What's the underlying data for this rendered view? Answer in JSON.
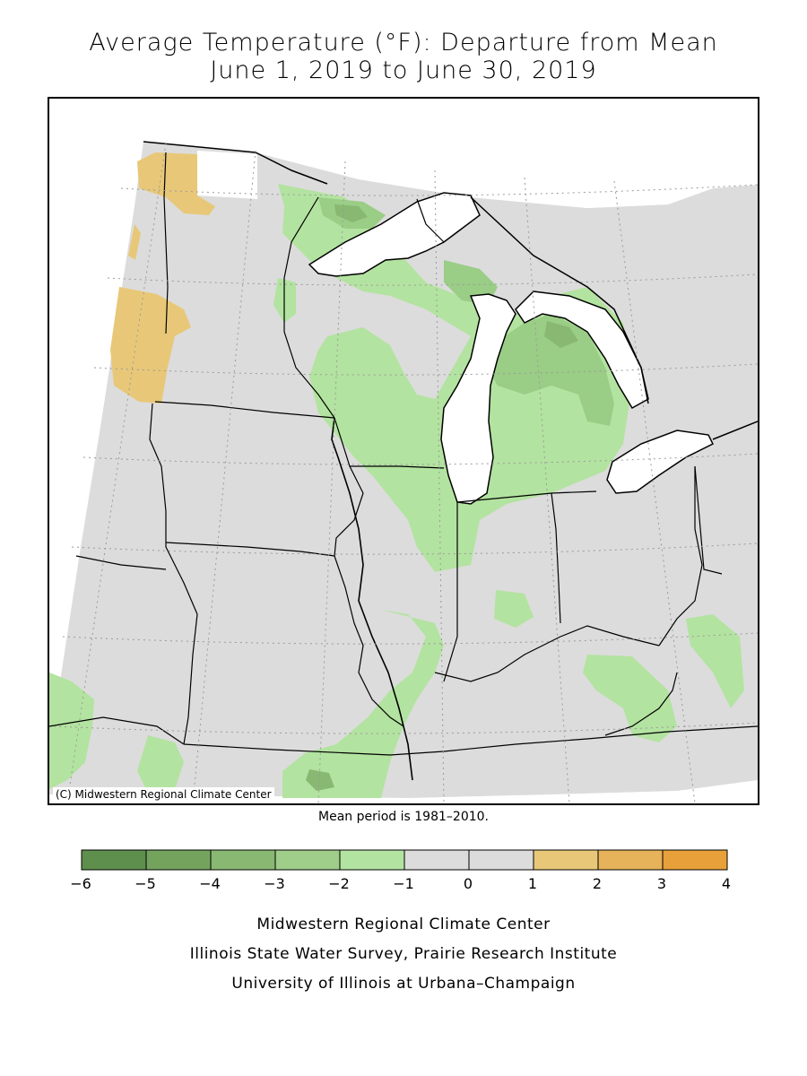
{
  "title": {
    "line1": "Average Temperature (°F): Departure from Mean",
    "line2": "June 1, 2019 to June 30, 2019"
  },
  "map": {
    "copyright": "(C) Midwestern Regional Climate Center",
    "colors": {
      "near_normal": "#dcdcdc",
      "minus1_to_minus2": "#b3e3a0",
      "minus2_to_minus3": "#9acd86",
      "minus3_to_minus4": "#88b872",
      "minus4_to_minus5": "#74a35e",
      "plus1_to_plus2": "#e8c878",
      "plus2_to_plus3": "#e6b25a",
      "plus3_to_plus4": "#e8a03a",
      "water": "#ffffff",
      "outline": "#000000"
    }
  },
  "mean_period_note": "Mean period is 1981–2010.",
  "legend": {
    "bins": [
      {
        "from": -6,
        "to": -5,
        "color": "#5e8f4c"
      },
      {
        "from": -5,
        "to": -4,
        "color": "#74a35e"
      },
      {
        "from": -4,
        "to": -3,
        "color": "#88b872"
      },
      {
        "from": -3,
        "to": -2,
        "color": "#9fcd8a"
      },
      {
        "from": -2,
        "to": -1,
        "color": "#b3e3a0"
      },
      {
        "from": -1,
        "to": 0,
        "color": "#dcdcdc"
      },
      {
        "from": 0,
        "to": 1,
        "color": "#dcdcdc"
      },
      {
        "from": 1,
        "to": 2,
        "color": "#e8c878"
      },
      {
        "from": 2,
        "to": 3,
        "color": "#e6b25a"
      },
      {
        "from": 3,
        "to": 4,
        "color": "#e8a03a"
      }
    ],
    "tick_labels": [
      "−6",
      "−5",
      "−4",
      "−3",
      "−2",
      "−1",
      "0",
      "1",
      "2",
      "3",
      "4"
    ]
  },
  "credits": {
    "line1": "Midwestern Regional Climate Center",
    "line2": "Illinois State Water Survey, Prairie Research Institute",
    "line3": "University of Illinois at Urbana–Champaign"
  }
}
